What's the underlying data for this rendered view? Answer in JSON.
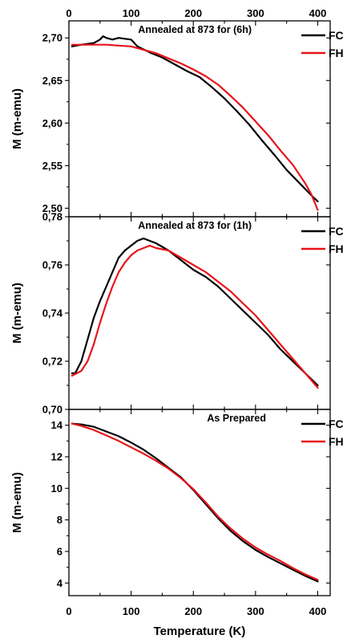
{
  "figure": {
    "xlabel": "Temperature (K)",
    "ylabel": "M (m-emu)",
    "xlim": [
      0,
      420
    ],
    "x_ticks": [
      "0",
      "100",
      "200",
      "300",
      "400"
    ]
  },
  "colors": {
    "FC": "#000000",
    "FH": "#e8141b"
  },
  "chart_data": [
    {
      "type": "line",
      "title": "Annealed at 873 for (6h)",
      "ylabel": "M (m-emu)",
      "ylim": [
        2.49,
        2.72
      ],
      "y_ticks": [
        2.5,
        2.55,
        2.6,
        2.65,
        2.7
      ],
      "y_tick_labels": [
        "2,50",
        "2,55",
        "2,60",
        "2,65",
        "2,70"
      ],
      "grid": false,
      "legend_position": "top-right",
      "series": [
        {
          "name": "FC",
          "color": "#000000",
          "x": [
            5,
            20,
            40,
            50,
            55,
            60,
            70,
            80,
            90,
            100,
            110,
            130,
            150,
            170,
            190,
            210,
            230,
            250,
            270,
            290,
            310,
            330,
            350,
            370,
            390,
            400
          ],
          "y": [
            2.69,
            2.692,
            2.694,
            2.698,
            2.702,
            2.7,
            2.698,
            2.7,
            2.699,
            2.698,
            2.69,
            2.683,
            2.677,
            2.669,
            2.661,
            2.654,
            2.642,
            2.629,
            2.614,
            2.598,
            2.58,
            2.563,
            2.545,
            2.53,
            2.515,
            2.508
          ]
        },
        {
          "name": "FH",
          "color": "#e8141b",
          "x": [
            5,
            20,
            40,
            60,
            80,
            100,
            120,
            140,
            160,
            180,
            200,
            220,
            240,
            260,
            280,
            300,
            320,
            340,
            360,
            380,
            390,
            400
          ],
          "y": [
            2.692,
            2.692,
            2.692,
            2.692,
            2.691,
            2.69,
            2.686,
            2.682,
            2.676,
            2.67,
            2.663,
            2.655,
            2.645,
            2.632,
            2.618,
            2.602,
            2.586,
            2.568,
            2.551,
            2.529,
            2.516,
            2.498
          ]
        }
      ]
    },
    {
      "type": "line",
      "title": "Annealed at 873 for (1h)",
      "ylabel": "M (m-emu)",
      "ylim": [
        0.7,
        0.78
      ],
      "y_ticks": [
        0.7,
        0.72,
        0.74,
        0.76,
        0.78
      ],
      "y_tick_labels": [
        "0,70",
        "0,72",
        "0,74",
        "0,76",
        "0,78"
      ],
      "grid": false,
      "legend_position": "top-right",
      "series": [
        {
          "name": "FC",
          "color": "#000000",
          "x": [
            5,
            10,
            20,
            30,
            40,
            50,
            60,
            70,
            80,
            90,
            100,
            110,
            120,
            130,
            140,
            160,
            180,
            200,
            220,
            240,
            260,
            280,
            300,
            320,
            340,
            360,
            380,
            400
          ],
          "y": [
            0.715,
            0.715,
            0.72,
            0.729,
            0.738,
            0.745,
            0.751,
            0.757,
            0.763,
            0.766,
            0.768,
            0.77,
            0.771,
            0.77,
            0.769,
            0.766,
            0.762,
            0.758,
            0.755,
            0.751,
            0.746,
            0.741,
            0.736,
            0.731,
            0.725,
            0.72,
            0.715,
            0.71
          ]
        },
        {
          "name": "FH",
          "color": "#e8141b",
          "x": [
            5,
            20,
            30,
            40,
            50,
            60,
            70,
            80,
            90,
            100,
            110,
            120,
            130,
            140,
            160,
            180,
            200,
            220,
            240,
            260,
            280,
            300,
            320,
            340,
            360,
            380,
            400
          ],
          "y": [
            0.714,
            0.716,
            0.72,
            0.727,
            0.736,
            0.744,
            0.751,
            0.757,
            0.761,
            0.764,
            0.766,
            0.767,
            0.768,
            0.767,
            0.766,
            0.763,
            0.76,
            0.757,
            0.753,
            0.749,
            0.744,
            0.739,
            0.733,
            0.727,
            0.721,
            0.715,
            0.709
          ]
        }
      ]
    },
    {
      "type": "line",
      "title": "As Prepared",
      "ylabel": "M (m-emu)",
      "ylim": [
        3.2,
        15.0
      ],
      "y_ticks": [
        4,
        6,
        8,
        10,
        12,
        14
      ],
      "y_tick_labels": [
        "4",
        "6",
        "8",
        "10",
        "12",
        "14"
      ],
      "grid": false,
      "legend_position": "top-right",
      "series": [
        {
          "name": "FC",
          "color": "#000000",
          "x": [
            5,
            20,
            40,
            60,
            80,
            100,
            120,
            140,
            160,
            180,
            200,
            220,
            240,
            260,
            280,
            300,
            320,
            340,
            360,
            380,
            400
          ],
          "y": [
            14.1,
            14.05,
            13.9,
            13.6,
            13.3,
            12.9,
            12.45,
            11.9,
            11.3,
            10.7,
            9.9,
            9.0,
            8.1,
            7.3,
            6.65,
            6.1,
            5.65,
            5.25,
            4.85,
            4.45,
            4.1
          ]
        },
        {
          "name": "FH",
          "color": "#e8141b",
          "x": [
            5,
            20,
            40,
            60,
            80,
            100,
            120,
            140,
            160,
            180,
            200,
            220,
            240,
            260,
            280,
            300,
            320,
            340,
            360,
            380,
            400
          ],
          "y": [
            14.1,
            13.95,
            13.7,
            13.35,
            13.0,
            12.6,
            12.2,
            11.75,
            11.25,
            10.65,
            9.95,
            9.1,
            8.2,
            7.45,
            6.8,
            6.25,
            5.8,
            5.4,
            4.95,
            4.55,
            4.2
          ]
        }
      ]
    }
  ]
}
